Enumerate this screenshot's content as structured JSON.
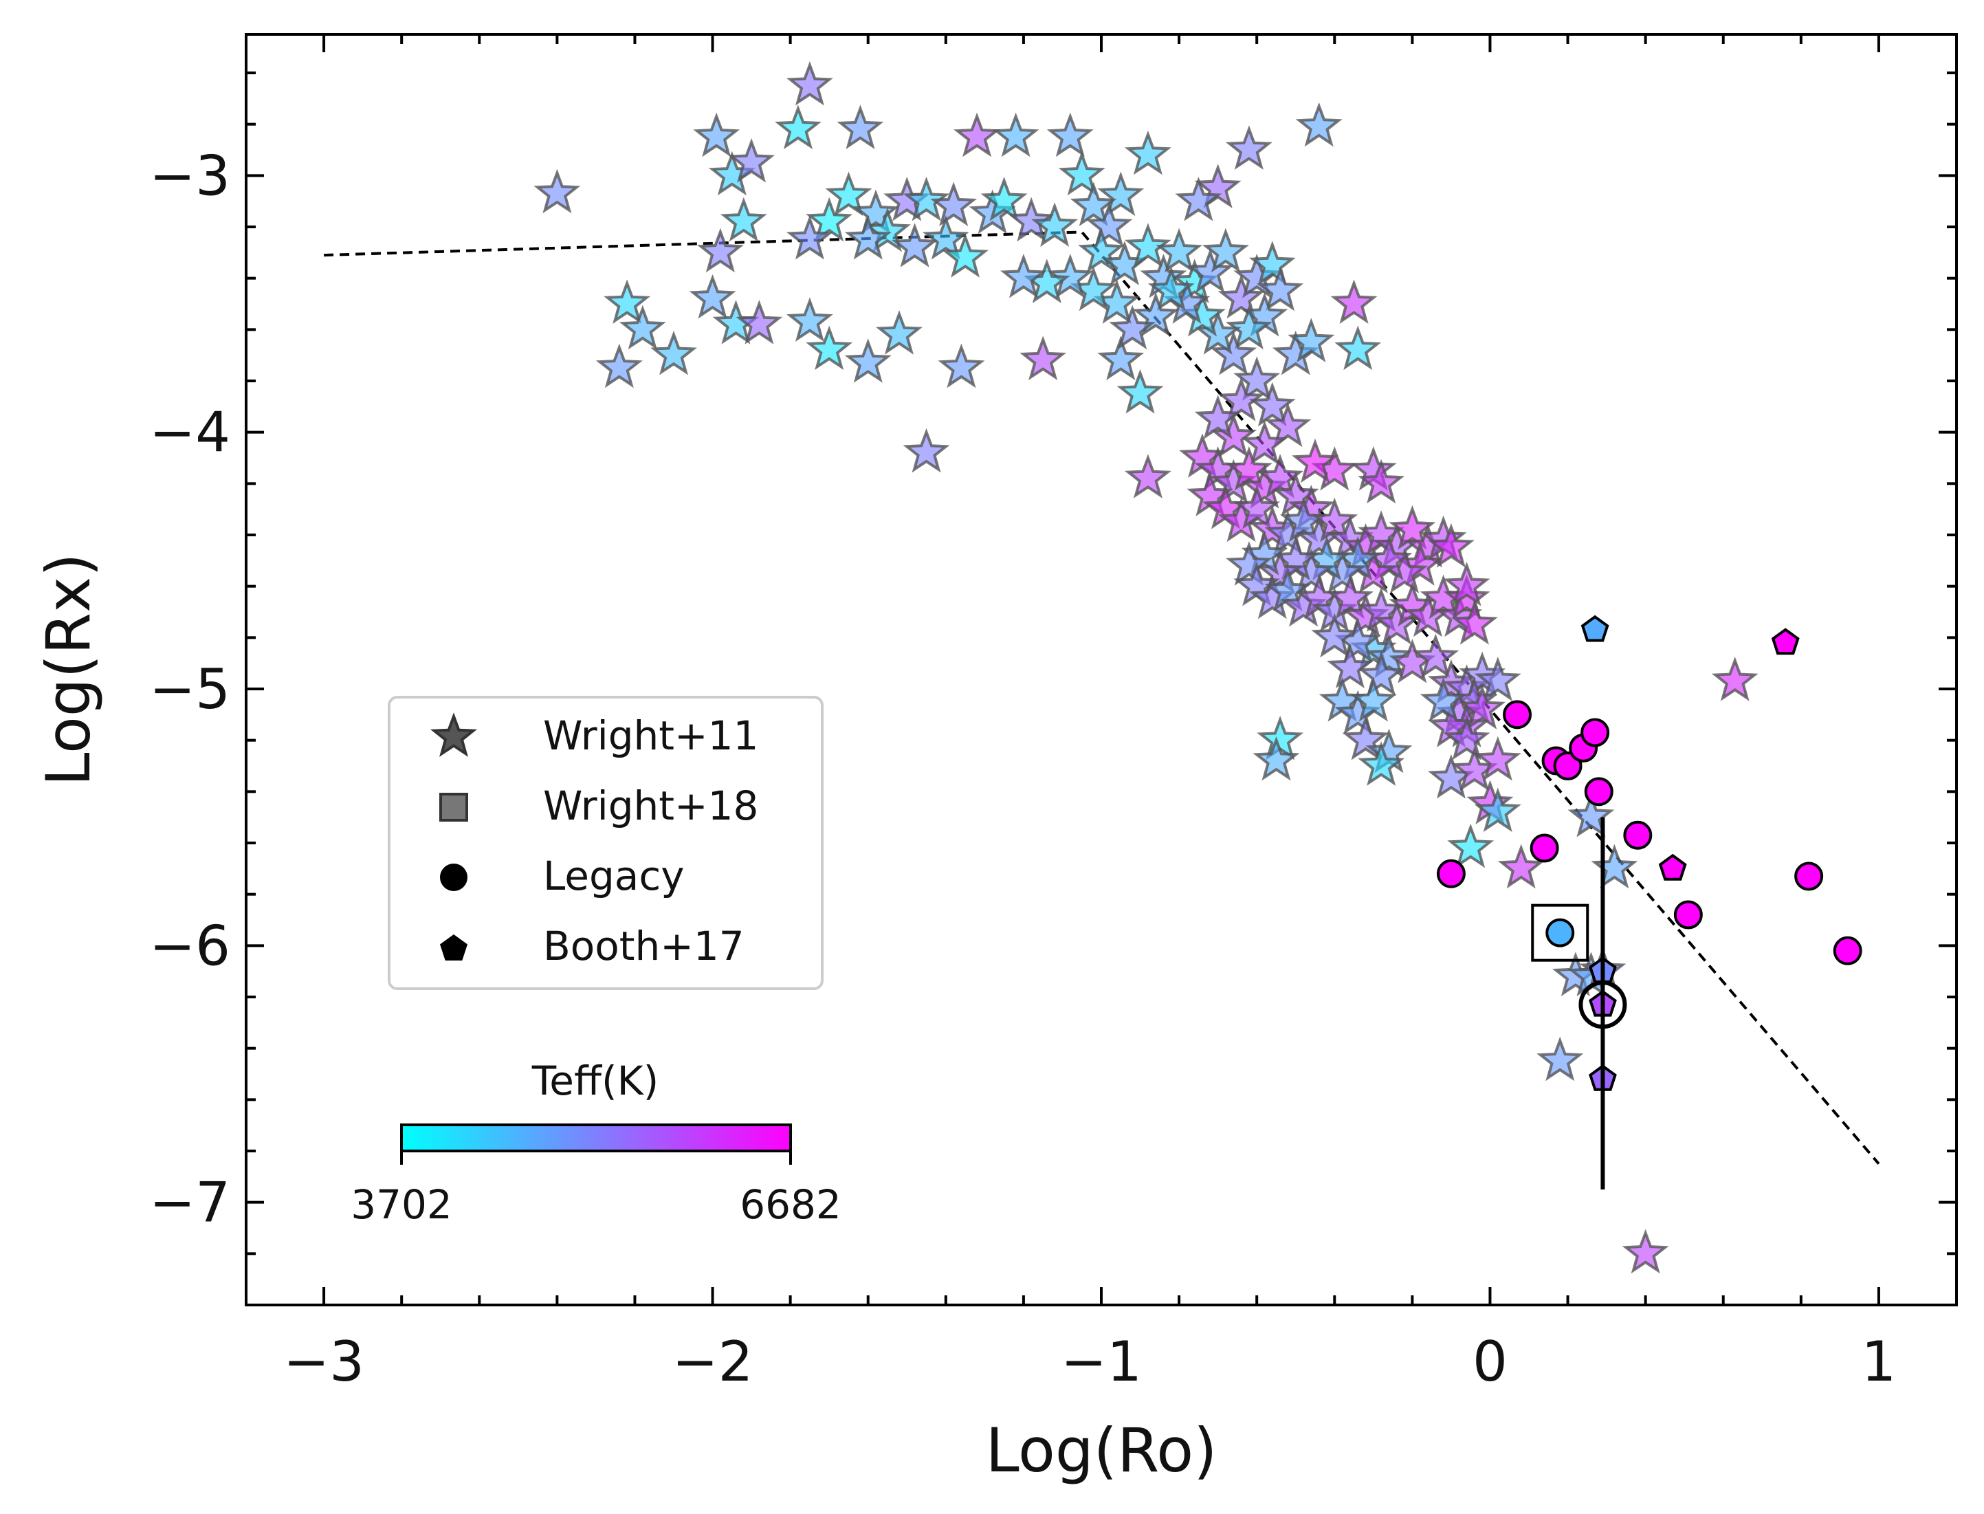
{
  "chart_data": {
    "type": "scatter",
    "xlabel": "Log(Ro)",
    "ylabel": "Log(Rx)",
    "xlim": [
      -3.2,
      1.2
    ],
    "ylim": [
      -7.4,
      -2.45
    ],
    "xticks": [
      -3,
      -2,
      -1,
      0,
      1
    ],
    "xtick_labels": [
      "−3",
      "−2",
      "−1",
      "0",
      "1"
    ],
    "yticks": [
      -3,
      -4,
      -5,
      -6,
      -7
    ],
    "ytick_labels": [
      "−3",
      "−4",
      "−5",
      "−6",
      "−7"
    ],
    "fit_line": {
      "style": "dashed",
      "points": [
        [
          -3.0,
          -3.31
        ],
        [
          -1.05,
          -3.22
        ],
        [
          1.0,
          -6.85
        ]
      ]
    },
    "colorbar": {
      "label": "Teff(K)",
      "min": 3702,
      "max": 6682,
      "min_label": "3702",
      "max_label": "6682",
      "color_min": "#00ffff",
      "color_max": "#ff00ff"
    },
    "legend": {
      "position": "lower-left",
      "entries": [
        {
          "label": "Wright+11",
          "marker": "star"
        },
        {
          "label": "Wright+18",
          "marker": "square"
        },
        {
          "label": "Legacy",
          "marker": "circle"
        },
        {
          "label": "Booth+17",
          "marker": "pentagon"
        }
      ]
    },
    "series": [
      {
        "name": "Wright+11",
        "marker": "star",
        "points": [
          [
            -2.4,
            -3.07,
            0.45
          ],
          [
            -1.99,
            -2.85,
            0.35
          ],
          [
            -1.95,
            -3.0,
            0.2
          ],
          [
            -1.9,
            -2.95,
            0.5
          ],
          [
            -1.75,
            -2.65,
            0.55
          ],
          [
            -1.78,
            -2.82,
            0.1
          ],
          [
            -1.62,
            -2.82,
            0.4
          ],
          [
            -1.32,
            -2.85,
            0.7
          ],
          [
            -1.22,
            -2.85,
            0.3
          ],
          [
            -1.08,
            -2.85,
            0.35
          ],
          [
            -0.88,
            -2.92,
            0.2
          ],
          [
            -0.62,
            -2.9,
            0.5
          ],
          [
            -0.44,
            -2.81,
            0.35
          ],
          [
            -0.7,
            -3.05,
            0.6
          ],
          [
            -0.75,
            -3.1,
            0.45
          ],
          [
            -1.05,
            -3.0,
            0.15
          ],
          [
            -0.95,
            -3.08,
            0.25
          ],
          [
            -1.65,
            -3.08,
            0.1
          ],
          [
            -1.58,
            -3.15,
            0.3
          ],
          [
            -1.5,
            -3.1,
            0.55
          ],
          [
            -1.45,
            -3.1,
            0.2
          ],
          [
            -1.38,
            -3.12,
            0.45
          ],
          [
            -1.28,
            -3.15,
            0.35
          ],
          [
            -1.25,
            -3.1,
            0.1
          ],
          [
            -1.18,
            -3.18,
            0.5
          ],
          [
            -1.12,
            -3.2,
            0.2
          ],
          [
            -1.02,
            -3.12,
            0.3
          ],
          [
            -0.98,
            -3.2,
            0.4
          ],
          [
            -1.55,
            -3.22,
            0.15
          ],
          [
            -1.48,
            -3.28,
            0.4
          ],
          [
            -1.4,
            -3.25,
            0.25
          ],
          [
            -1.35,
            -3.32,
            0.1
          ],
          [
            -1.6,
            -3.25,
            0.35
          ],
          [
            -1.7,
            -3.18,
            0.05
          ],
          [
            -1.75,
            -3.25,
            0.45
          ],
          [
            -1.92,
            -3.18,
            0.15
          ],
          [
            -1.98,
            -3.3,
            0.5
          ],
          [
            -2.0,
            -3.48,
            0.35
          ],
          [
            -1.94,
            -3.58,
            0.2
          ],
          [
            -1.88,
            -3.58,
            0.6
          ],
          [
            -2.22,
            -3.5,
            0.15
          ],
          [
            -2.18,
            -3.6,
            0.3
          ],
          [
            -2.1,
            -3.7,
            0.25
          ],
          [
            -2.24,
            -3.75,
            0.4
          ],
          [
            -1.75,
            -3.57,
            0.3
          ],
          [
            -1.7,
            -3.68,
            0.1
          ],
          [
            -1.6,
            -3.73,
            0.35
          ],
          [
            -1.52,
            -3.62,
            0.25
          ],
          [
            -1.36,
            -3.75,
            0.4
          ],
          [
            -1.45,
            -4.08,
            0.5
          ],
          [
            -1.15,
            -3.72,
            0.7
          ],
          [
            -0.95,
            -3.72,
            0.35
          ],
          [
            -0.9,
            -3.85,
            0.15
          ],
          [
            -0.88,
            -4.18,
            0.75
          ],
          [
            -1.0,
            -3.3,
            0.2
          ],
          [
            -0.94,
            -3.35,
            0.3
          ],
          [
            -0.88,
            -3.28,
            0.15
          ],
          [
            -0.84,
            -3.4,
            0.35
          ],
          [
            -0.8,
            -3.3,
            0.25
          ],
          [
            -0.76,
            -3.42,
            0.1
          ],
          [
            -0.72,
            -3.38,
            0.4
          ],
          [
            -0.68,
            -3.3,
            0.3
          ],
          [
            -0.64,
            -3.48,
            0.55
          ],
          [
            -0.6,
            -3.4,
            0.45
          ],
          [
            -0.56,
            -3.35,
            0.2
          ],
          [
            -0.54,
            -3.45,
            0.4
          ],
          [
            -0.58,
            -3.55,
            0.35
          ],
          [
            -0.62,
            -3.6,
            0.25
          ],
          [
            -0.66,
            -3.7,
            0.45
          ],
          [
            -0.7,
            -3.62,
            0.3
          ],
          [
            -0.74,
            -3.55,
            0.15
          ],
          [
            -0.78,
            -3.5,
            0.4
          ],
          [
            -0.82,
            -3.45,
            0.2
          ],
          [
            -0.86,
            -3.55,
            0.35
          ],
          [
            -0.92,
            -3.6,
            0.45
          ],
          [
            -0.96,
            -3.5,
            0.25
          ],
          [
            -1.02,
            -3.45,
            0.2
          ],
          [
            -1.08,
            -3.4,
            0.3
          ],
          [
            -1.14,
            -3.42,
            0.15
          ],
          [
            -1.2,
            -3.4,
            0.35
          ],
          [
            -0.5,
            -3.7,
            0.4
          ],
          [
            -0.46,
            -3.65,
            0.3
          ],
          [
            -0.35,
            -3.5,
            0.8
          ],
          [
            -0.34,
            -3.68,
            0.15
          ],
          [
            -0.6,
            -3.8,
            0.5
          ],
          [
            -0.64,
            -3.88,
            0.6
          ],
          [
            -0.56,
            -3.9,
            0.55
          ],
          [
            -0.52,
            -3.98,
            0.65
          ],
          [
            -0.58,
            -4.05,
            0.7
          ],
          [
            -0.66,
            -4.02,
            0.75
          ],
          [
            -0.7,
            -3.95,
            0.6
          ],
          [
            -0.74,
            -4.1,
            0.8
          ],
          [
            -0.7,
            -4.15,
            0.75
          ],
          [
            -0.66,
            -4.2,
            0.7
          ],
          [
            -0.62,
            -4.15,
            0.85
          ],
          [
            -0.58,
            -4.22,
            0.8
          ],
          [
            -0.54,
            -4.18,
            0.75
          ],
          [
            -0.5,
            -4.25,
            0.7
          ],
          [
            -0.46,
            -4.3,
            0.75
          ],
          [
            -0.72,
            -4.25,
            0.8
          ],
          [
            -0.68,
            -4.3,
            0.85
          ],
          [
            -0.64,
            -4.35,
            0.8
          ],
          [
            -0.6,
            -4.3,
            0.7
          ],
          [
            -0.56,
            -4.38,
            0.75
          ],
          [
            -0.52,
            -4.4,
            0.5
          ],
          [
            -0.48,
            -4.35,
            0.45
          ],
          [
            -0.44,
            -4.42,
            0.55
          ],
          [
            -0.4,
            -4.35,
            0.7
          ],
          [
            -0.36,
            -4.42,
            0.65
          ],
          [
            -0.32,
            -4.45,
            0.8
          ],
          [
            -0.28,
            -4.4,
            0.75
          ],
          [
            -0.24,
            -4.45,
            0.7
          ],
          [
            -0.2,
            -4.38,
            0.85
          ],
          [
            -0.16,
            -4.45,
            0.8
          ],
          [
            -0.12,
            -4.42,
            0.75
          ],
          [
            -0.18,
            -4.52,
            0.8
          ],
          [
            -0.22,
            -4.55,
            0.75
          ],
          [
            -0.26,
            -4.5,
            0.7
          ],
          [
            -0.3,
            -4.55,
            0.8
          ],
          [
            -0.34,
            -4.5,
            0.35
          ],
          [
            -0.38,
            -4.55,
            0.45
          ],
          [
            -0.42,
            -4.5,
            0.3
          ],
          [
            -0.46,
            -4.55,
            0.5
          ],
          [
            -0.5,
            -4.5,
            0.55
          ],
          [
            -0.54,
            -4.55,
            0.6
          ],
          [
            -0.58,
            -4.48,
            0.4
          ],
          [
            -0.62,
            -4.52,
            0.45
          ],
          [
            -0.6,
            -4.6,
            0.5
          ],
          [
            -0.56,
            -4.65,
            0.55
          ],
          [
            -0.52,
            -4.62,
            0.4
          ],
          [
            -0.48,
            -4.68,
            0.6
          ],
          [
            -0.44,
            -4.65,
            0.65
          ],
          [
            -0.4,
            -4.7,
            0.55
          ],
          [
            -0.36,
            -4.65,
            0.7
          ],
          [
            -0.32,
            -4.72,
            0.75
          ],
          [
            -0.28,
            -4.7,
            0.65
          ],
          [
            -0.24,
            -4.75,
            0.7
          ],
          [
            -0.2,
            -4.68,
            0.8
          ],
          [
            -0.16,
            -4.72,
            0.75
          ],
          [
            -0.12,
            -4.65,
            0.8
          ],
          [
            -0.08,
            -4.72,
            0.75
          ],
          [
            -0.06,
            -4.65,
            0.85
          ],
          [
            -0.3,
            -4.85,
            0.25
          ],
          [
            -0.26,
            -4.88,
            0.4
          ],
          [
            -0.34,
            -4.82,
            0.45
          ],
          [
            -0.4,
            -4.8,
            0.5
          ],
          [
            -0.36,
            -4.92,
            0.55
          ],
          [
            -0.28,
            -4.95,
            0.45
          ],
          [
            -0.2,
            -4.9,
            0.7
          ],
          [
            -0.14,
            -4.88,
            0.65
          ],
          [
            -0.4,
            -4.15,
            0.85
          ],
          [
            -0.3,
            -4.15,
            0.75
          ],
          [
            -0.28,
            -4.2,
            0.8
          ],
          [
            -0.45,
            -4.12,
            0.9
          ],
          [
            -0.1,
            -4.45,
            0.85
          ],
          [
            -0.06,
            -4.6,
            0.8
          ],
          [
            -0.04,
            -4.75,
            0.85
          ],
          [
            -0.1,
            -4.98,
            0.65
          ],
          [
            -0.06,
            -5.0,
            0.6
          ],
          [
            -0.02,
            -4.95,
            0.55
          ],
          [
            0.02,
            -4.97,
            0.5
          ],
          [
            -0.04,
            -5.05,
            0.6
          ],
          [
            -0.08,
            -5.1,
            0.65
          ],
          [
            -0.06,
            -5.15,
            0.7
          ],
          [
            -0.02,
            -5.08,
            0.75
          ],
          [
            -0.1,
            -5.15,
            0.7
          ],
          [
            -0.06,
            -5.2,
            0.65
          ],
          [
            -0.12,
            -5.05,
            0.4
          ],
          [
            -0.38,
            -5.05,
            0.35
          ],
          [
            -0.34,
            -5.1,
            0.4
          ],
          [
            -0.3,
            -5.05,
            0.3
          ],
          [
            -0.32,
            -5.2,
            0.5
          ],
          [
            -0.26,
            -5.25,
            0.35
          ],
          [
            -0.28,
            -5.3,
            0.15
          ],
          [
            -0.54,
            -5.2,
            0.1
          ],
          [
            -0.55,
            -5.28,
            0.3
          ],
          [
            -0.1,
            -5.35,
            0.5
          ],
          [
            -0.04,
            -5.32,
            0.7
          ],
          [
            0.02,
            -5.28,
            0.75
          ],
          [
            0.0,
            -5.45,
            0.8
          ],
          [
            0.02,
            -5.48,
            0.2
          ],
          [
            -0.05,
            -5.62,
            0.1
          ],
          [
            0.08,
            -5.7,
            0.8
          ],
          [
            0.26,
            -5.5,
            0.4
          ],
          [
            0.32,
            -5.7,
            0.35
          ],
          [
            0.63,
            -4.97,
            0.85
          ],
          [
            0.22,
            -6.12,
            0.4
          ],
          [
            0.26,
            -6.12,
            0.35
          ],
          [
            0.29,
            -6.1,
            0.55
          ],
          [
            0.18,
            -6.45,
            0.4
          ],
          [
            0.4,
            -7.2,
            0.75
          ]
        ]
      },
      {
        "name": "Wright+18",
        "marker": "square",
        "points": [
          [
            0.18,
            -5.95,
            0.3
          ]
        ]
      },
      {
        "name": "Legacy",
        "marker": "circle",
        "points": [
          [
            0.07,
            -5.1,
            1
          ],
          [
            0.14,
            -5.62,
            1
          ],
          [
            0.17,
            -5.28,
            1
          ],
          [
            0.2,
            -5.3,
            1
          ],
          [
            0.24,
            -5.23,
            1
          ],
          [
            0.27,
            -5.17,
            1
          ],
          [
            0.28,
            -5.4,
            1
          ],
          [
            0.38,
            -5.57,
            1
          ],
          [
            0.51,
            -5.88,
            1
          ],
          [
            0.82,
            -5.73,
            1
          ],
          [
            0.92,
            -6.02,
            1
          ],
          [
            -0.1,
            -5.72,
            1
          ],
          [
            0.18,
            -5.95,
            0.3
          ]
        ]
      },
      {
        "name": "Booth+17",
        "marker": "pentagon",
        "points": [
          [
            0.27,
            -4.77,
            0.33
          ],
          [
            0.76,
            -4.82,
            1
          ],
          [
            0.47,
            -5.7,
            1
          ],
          [
            0.29,
            -6.1,
            0.45
          ],
          [
            0.29,
            -6.23,
            0.7
          ],
          [
            0.29,
            -6.52,
            0.6
          ]
        ]
      }
    ],
    "highlighted_point": {
      "x": 0.29,
      "y": -6.23,
      "y_err_upper": -5.5,
      "y_err_lower": -6.95
    }
  }
}
